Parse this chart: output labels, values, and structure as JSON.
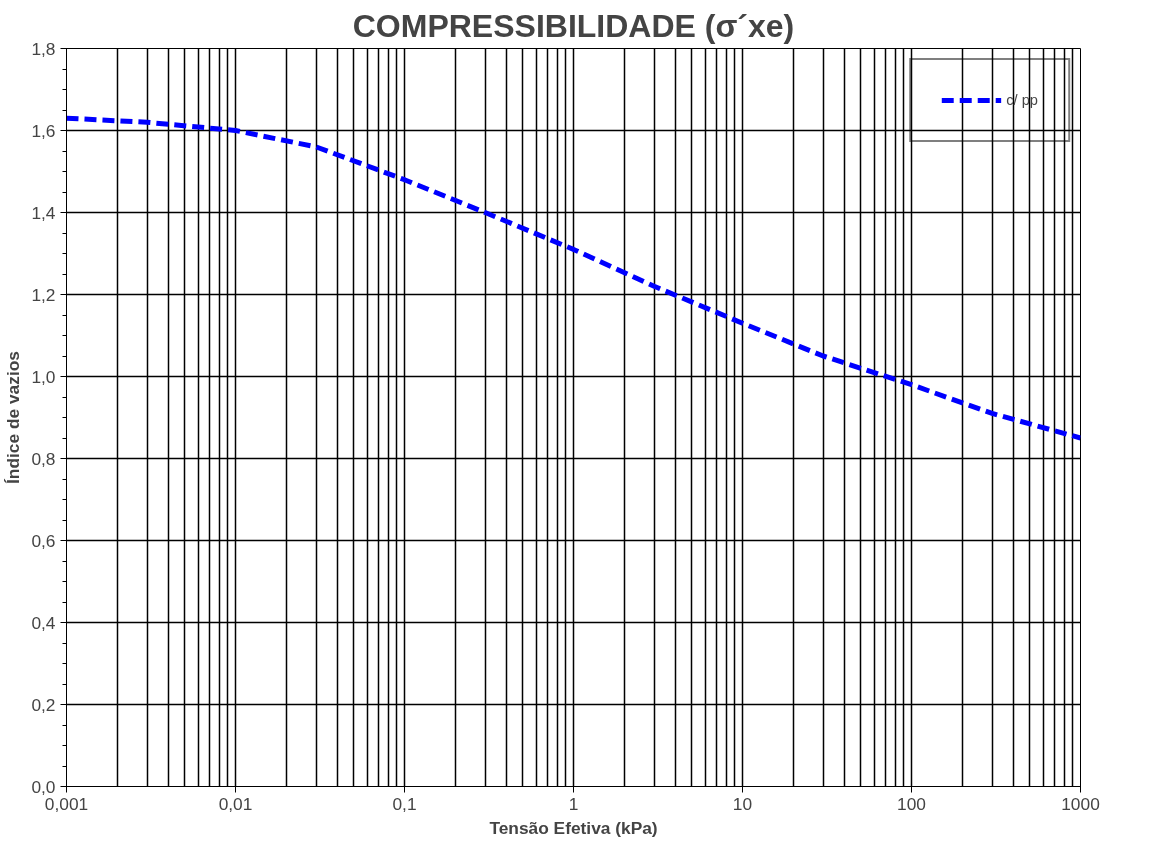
{
  "chart_data": {
    "type": "line",
    "title": "COMPRESSIBILIDADE (σ´xe)",
    "xlabel": "Tensão Efetiva (kPa)",
    "ylabel": "Índice de vazios",
    "log": "x",
    "grid": true,
    "legend": "top right",
    "line_style": "dashed",
    "marker": "none",
    "xlim": [
      0.001,
      1000
    ],
    "ylim": [
      0,
      1.8
    ],
    "xticks": [
      {
        "value": 0.001,
        "label": "0,001"
      },
      {
        "value": 0.01,
        "label": "0,01"
      },
      {
        "value": 0.1,
        "label": "0,1"
      },
      1,
      10,
      100,
      1000
    ],
    "yticks": [
      {
        "value": 0,
        "label": "0,0"
      },
      {
        "value": 0.2,
        "label": "0,2"
      },
      {
        "value": 0.4,
        "label": "0,4"
      },
      {
        "value": 0.6,
        "label": "0,6"
      },
      {
        "value": 0.8,
        "label": "0,8"
      },
      {
        "value": 1.0,
        "label": "1,0"
      },
      {
        "value": 1.2,
        "label": "1,2"
      },
      {
        "value": 1.4,
        "label": "1,4"
      },
      {
        "value": 1.6,
        "label": "1,6"
      },
      {
        "value": 1.8,
        "label": "1,8"
      }
    ],
    "x": [
      0.001,
      0.003,
      0.01,
      0.03,
      0.1,
      0.3,
      1,
      3,
      10,
      30,
      100,
      300,
      1000
    ],
    "series": [
      {
        "name": "c/ pp",
        "color": "#0000ff",
        "values": [
          1.63,
          1.62,
          1.6,
          1.56,
          1.48,
          1.4,
          1.31,
          1.22,
          1.13,
          1.05,
          0.98,
          0.91,
          0.85
        ]
      }
    ]
  }
}
